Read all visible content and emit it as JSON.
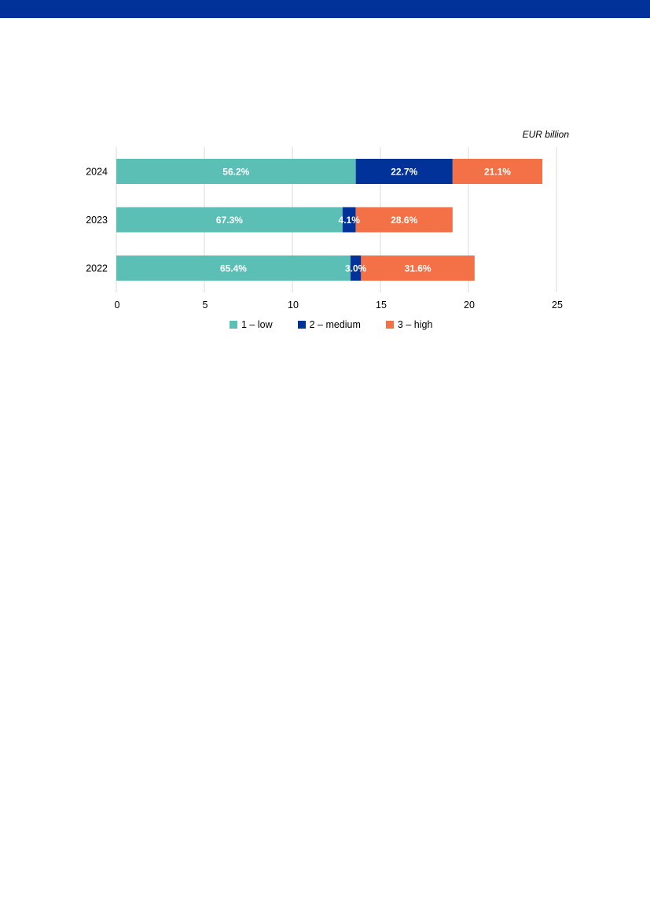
{
  "chart_data": {
    "type": "bar",
    "orientation": "horizontal",
    "stacked": true,
    "unit_label": "EUR billion",
    "categories": [
      "2024",
      "2023",
      "2022"
    ],
    "series": [
      {
        "name": "1 – low",
        "color": "#5bbfb6",
        "values": [
          13.6,
          12.85,
          13.3
        ],
        "labels": [
          "56.2%",
          "67.3%",
          "65.4%"
        ]
      },
      {
        "name": "2 – medium",
        "color": "#003299",
        "values": [
          5.5,
          0.75,
          0.6
        ],
        "labels": [
          "22.7%",
          "4.1%",
          "3.0%"
        ]
      },
      {
        "name": "3 – high",
        "color": "#f47046",
        "values": [
          5.1,
          5.5,
          6.45
        ],
        "labels": [
          "21.1%",
          "28.6%",
          "31.6%"
        ]
      }
    ],
    "xlim": [
      0,
      25
    ],
    "xticks": [
      "0",
      "5",
      "10",
      "15",
      "20",
      "25"
    ],
    "grid": "vertical",
    "legend_position": "bottom"
  },
  "colors": {
    "top_band": "#003299",
    "grid": "#d9d9d9"
  }
}
